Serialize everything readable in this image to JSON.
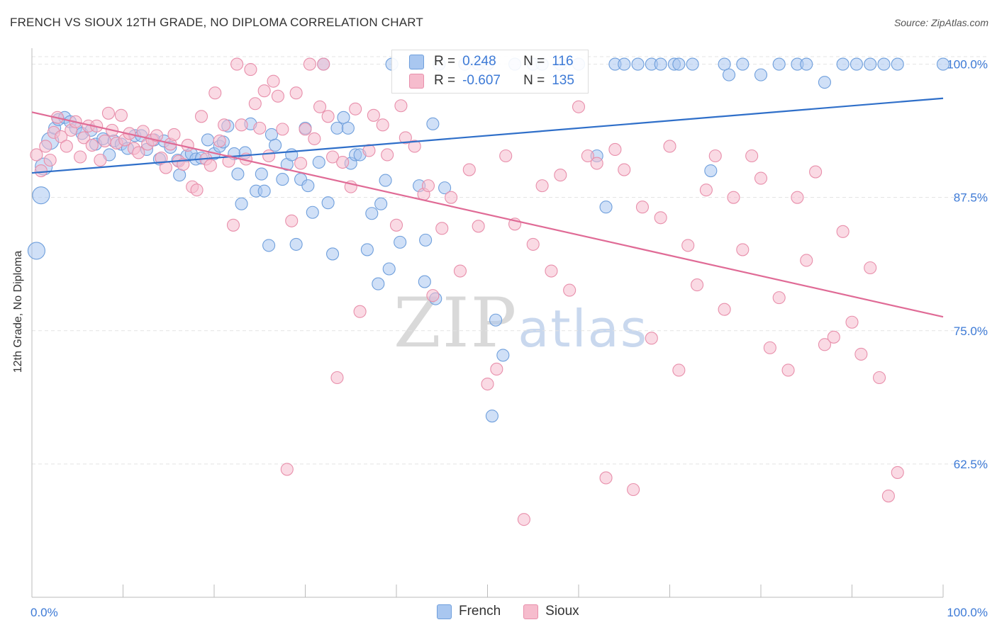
{
  "header": {
    "title": "FRENCH VS SIOUX 12TH GRADE, NO DIPLOMA CORRELATION CHART",
    "source": "Source: ZipAtlas.com"
  },
  "watermark": {
    "zip": "ZIP",
    "atlas": "atlas"
  },
  "legend": {
    "french": {
      "r_label": "R =",
      "r_value": "0.248",
      "n_label": "N =",
      "n_value": "116"
    },
    "sioux": {
      "r_label": "R =",
      "r_value": "-0.607",
      "n_label": "N =",
      "n_value": "135"
    }
  },
  "bottom_legend": {
    "french": "French",
    "sioux": "Sioux"
  },
  "colors": {
    "french_fill": "#a9c7f0",
    "french_stroke": "#6f9fdc",
    "french_line": "#2f6fc9",
    "sioux_fill": "#f6bccd",
    "sioux_stroke": "#e88fab",
    "sioux_line": "#e06b96",
    "axis_text": "#3d7ad6"
  },
  "chart_data": {
    "type": "scatter",
    "title": "FRENCH VS SIOUX 12TH GRADE, NO DIPLOMA CORRELATION CHART",
    "xlabel": "",
    "ylabel": "12th Grade, No Diploma",
    "xlim": [
      0,
      100
    ],
    "ylim": [
      50,
      101.5
    ],
    "x_tick_labels": [
      "0.0%",
      "100.0%"
    ],
    "y_ticks": [
      62.5,
      75.0,
      87.5,
      100.0
    ],
    "y_tick_labels": [
      "62.5%",
      "75.0%",
      "87.5%",
      "100.0%"
    ],
    "grid": true,
    "series": [
      {
        "name": "French",
        "r": 0.248,
        "n": 116,
        "trend": {
          "x": [
            0,
            100
          ],
          "y": [
            89.8,
            96.8
          ]
        },
        "points": [
          [
            0.5,
            82.5
          ],
          [
            1.0,
            87.7
          ],
          [
            1.3,
            90.4
          ],
          [
            2.0,
            92.8
          ],
          [
            2.5,
            94.0
          ],
          [
            2.9,
            94.8
          ],
          [
            3.6,
            95.0
          ],
          [
            4.2,
            94.6
          ],
          [
            4.8,
            94.0
          ],
          [
            5.5,
            93.5
          ],
          [
            6.5,
            93.8
          ],
          [
            7.0,
            92.5
          ],
          [
            7.8,
            93.0
          ],
          [
            8.5,
            91.5
          ],
          [
            9.0,
            92.8
          ],
          [
            9.8,
            92.5
          ],
          [
            10.5,
            92.1
          ],
          [
            11.3,
            93.3
          ],
          [
            12.0,
            93.3
          ],
          [
            12.6,
            92.0
          ],
          [
            13.4,
            92.9
          ],
          [
            14.0,
            91.1
          ],
          [
            14.5,
            92.8
          ],
          [
            15.2,
            92.2
          ],
          [
            16.0,
            91.0
          ],
          [
            16.2,
            89.6
          ],
          [
            17.0,
            91.4
          ],
          [
            17.5,
            91.6
          ],
          [
            18.0,
            91.1
          ],
          [
            18.6,
            91.2
          ],
          [
            19.3,
            92.9
          ],
          [
            20.0,
            91.6
          ],
          [
            20.6,
            92.3
          ],
          [
            21.0,
            92.7
          ],
          [
            21.5,
            94.2
          ],
          [
            22.2,
            91.6
          ],
          [
            22.6,
            89.7
          ],
          [
            23.0,
            86.9
          ],
          [
            23.4,
            91.7
          ],
          [
            24.0,
            94.4
          ],
          [
            24.6,
            88.1
          ],
          [
            25.2,
            89.7
          ],
          [
            25.5,
            88.1
          ],
          [
            26.0,
            83.0
          ],
          [
            26.3,
            93.4
          ],
          [
            26.7,
            92.4
          ],
          [
            27.5,
            89.2
          ],
          [
            28.0,
            90.6
          ],
          [
            28.5,
            91.5
          ],
          [
            29.0,
            83.1
          ],
          [
            29.5,
            89.2
          ],
          [
            30.0,
            94.0
          ],
          [
            30.3,
            88.6
          ],
          [
            30.8,
            86.1
          ],
          [
            31.5,
            90.8
          ],
          [
            32.0,
            100.0
          ],
          [
            32.5,
            87.0
          ],
          [
            33.0,
            82.2
          ],
          [
            33.5,
            94.0
          ],
          [
            34.2,
            95.0
          ],
          [
            34.7,
            94.0
          ],
          [
            35.0,
            90.7
          ],
          [
            35.5,
            91.5
          ],
          [
            36.0,
            91.5
          ],
          [
            36.8,
            82.6
          ],
          [
            37.3,
            86.0
          ],
          [
            38.0,
            79.4
          ],
          [
            38.3,
            86.9
          ],
          [
            38.8,
            89.1
          ],
          [
            39.2,
            80.8
          ],
          [
            39.5,
            100.0
          ],
          [
            40.4,
            83.3
          ],
          [
            42.0,
            100.0
          ],
          [
            42.5,
            88.6
          ],
          [
            43.1,
            79.6
          ],
          [
            43.2,
            83.5
          ],
          [
            44.0,
            94.4
          ],
          [
            44.3,
            78.0
          ],
          [
            44.7,
            100.0
          ],
          [
            45.3,
            88.4
          ],
          [
            47.5,
            100.0
          ],
          [
            49.0,
            100.0
          ],
          [
            50.0,
            100.0
          ],
          [
            50.5,
            67.0
          ],
          [
            50.9,
            76.0
          ],
          [
            51.7,
            72.7
          ],
          [
            53.0,
            100.0
          ],
          [
            55.0,
            100.0
          ],
          [
            56.0,
            100.0
          ],
          [
            58.0,
            100.0
          ],
          [
            60.0,
            100.0
          ],
          [
            62.0,
            91.4
          ],
          [
            63.0,
            86.6
          ],
          [
            64.0,
            100.0
          ],
          [
            65.0,
            100.0
          ],
          [
            66.5,
            100.0
          ],
          [
            68.0,
            100.0
          ],
          [
            69.0,
            100.0
          ],
          [
            70.5,
            100.0
          ],
          [
            71.0,
            100.0
          ],
          [
            72.5,
            100.0
          ],
          [
            74.5,
            90.0
          ],
          [
            76.0,
            100.0
          ],
          [
            76.5,
            99.0
          ],
          [
            78.0,
            100.0
          ],
          [
            80.0,
            99.0
          ],
          [
            82.0,
            100.0
          ],
          [
            84.0,
            100.0
          ],
          [
            85.0,
            100.0
          ],
          [
            87.0,
            98.3
          ],
          [
            89.0,
            100.0
          ],
          [
            90.5,
            100.0
          ],
          [
            92.0,
            100.0
          ],
          [
            93.5,
            100.0
          ],
          [
            95.0,
            100.0
          ],
          [
            100.0,
            100.0
          ]
        ]
      },
      {
        "name": "Sioux",
        "r": -0.607,
        "n": 135,
        "trend": {
          "x": [
            0,
            100
          ],
          "y": [
            95.5,
            76.3
          ]
        },
        "points": [
          [
            0.5,
            91.5
          ],
          [
            1.0,
            90.0
          ],
          [
            1.5,
            92.3
          ],
          [
            2.0,
            91.0
          ],
          [
            2.4,
            93.6
          ],
          [
            2.8,
            95.0
          ],
          [
            3.2,
            93.2
          ],
          [
            3.8,
            92.3
          ],
          [
            4.3,
            93.8
          ],
          [
            4.8,
            94.6
          ],
          [
            5.3,
            91.3
          ],
          [
            5.7,
            93.1
          ],
          [
            6.2,
            94.2
          ],
          [
            6.6,
            92.4
          ],
          [
            7.1,
            94.2
          ],
          [
            7.5,
            91.0
          ],
          [
            8.0,
            92.8
          ],
          [
            8.4,
            95.4
          ],
          [
            8.8,
            93.8
          ],
          [
            9.3,
            92.6
          ],
          [
            9.8,
            95.2
          ],
          [
            10.2,
            92.9
          ],
          [
            10.7,
            93.5
          ],
          [
            11.2,
            92.1
          ],
          [
            11.7,
            91.7
          ],
          [
            12.2,
            93.7
          ],
          [
            12.7,
            92.5
          ],
          [
            13.2,
            92.9
          ],
          [
            13.7,
            93.3
          ],
          [
            14.2,
            91.2
          ],
          [
            14.7,
            90.3
          ],
          [
            15.2,
            92.5
          ],
          [
            15.6,
            93.4
          ],
          [
            16.1,
            90.9
          ],
          [
            16.6,
            90.6
          ],
          [
            17.1,
            92.4
          ],
          [
            17.6,
            88.5
          ],
          [
            18.1,
            88.2
          ],
          [
            18.6,
            95.1
          ],
          [
            19.1,
            91.1
          ],
          [
            19.6,
            90.5
          ],
          [
            20.1,
            97.3
          ],
          [
            20.6,
            92.8
          ],
          [
            21.1,
            94.3
          ],
          [
            21.6,
            90.9
          ],
          [
            22.1,
            84.9
          ],
          [
            22.5,
            100.0
          ],
          [
            23.0,
            94.3
          ],
          [
            23.5,
            91.1
          ],
          [
            24.0,
            99.5
          ],
          [
            24.5,
            96.3
          ],
          [
            25.0,
            94.0
          ],
          [
            25.5,
            97.5
          ],
          [
            26.0,
            91.4
          ],
          [
            26.5,
            98.4
          ],
          [
            27.0,
            97.0
          ],
          [
            27.5,
            93.9
          ],
          [
            28.0,
            62.0
          ],
          [
            28.5,
            85.3
          ],
          [
            29.0,
            97.3
          ],
          [
            29.5,
            90.7
          ],
          [
            30.0,
            93.9
          ],
          [
            30.5,
            100.0
          ],
          [
            31.0,
            93.0
          ],
          [
            31.6,
            96.0
          ],
          [
            32.0,
            100.0
          ],
          [
            32.5,
            95.1
          ],
          [
            33.0,
            91.3
          ],
          [
            33.5,
            70.6
          ],
          [
            34.1,
            90.8
          ],
          [
            35.0,
            88.5
          ],
          [
            35.5,
            95.8
          ],
          [
            36.0,
            76.8
          ],
          [
            37.0,
            91.9
          ],
          [
            37.5,
            95.2
          ],
          [
            38.5,
            94.3
          ],
          [
            39.0,
            91.5
          ],
          [
            40.0,
            84.9
          ],
          [
            40.5,
            96.1
          ],
          [
            41.0,
            93.1
          ],
          [
            42.0,
            92.3
          ],
          [
            43.0,
            87.8
          ],
          [
            43.5,
            88.6
          ],
          [
            44.0,
            78.3
          ],
          [
            45.0,
            84.6
          ],
          [
            46.0,
            87.5
          ],
          [
            47.0,
            80.6
          ],
          [
            48.0,
            90.1
          ],
          [
            49.0,
            84.8
          ],
          [
            50.0,
            70.0
          ],
          [
            51.0,
            71.4
          ],
          [
            52.0,
            91.4
          ],
          [
            53.0,
            85.0
          ],
          [
            54.0,
            57.3
          ],
          [
            55.0,
            83.1
          ],
          [
            56.0,
            88.6
          ],
          [
            57.0,
            80.6
          ],
          [
            58.0,
            89.6
          ],
          [
            59.0,
            78.8
          ],
          [
            60.0,
            96.0
          ],
          [
            61.0,
            91.4
          ],
          [
            62.0,
            90.7
          ],
          [
            63.0,
            61.2
          ],
          [
            64.0,
            92.0
          ],
          [
            65.0,
            90.1
          ],
          [
            66.0,
            60.1
          ],
          [
            67.0,
            86.6
          ],
          [
            68.0,
            74.3
          ],
          [
            69.0,
            85.6
          ],
          [
            70.0,
            92.3
          ],
          [
            71.0,
            71.3
          ],
          [
            72.0,
            83.0
          ],
          [
            73.0,
            79.3
          ],
          [
            74.0,
            88.2
          ],
          [
            75.0,
            91.4
          ],
          [
            76.0,
            77.0
          ],
          [
            77.0,
            87.5
          ],
          [
            78.0,
            82.6
          ],
          [
            79.0,
            91.4
          ],
          [
            80.0,
            89.3
          ],
          [
            81.0,
            73.4
          ],
          [
            82.0,
            78.1
          ],
          [
            83.0,
            71.3
          ],
          [
            84.0,
            87.5
          ],
          [
            85.0,
            81.6
          ],
          [
            86.0,
            89.9
          ],
          [
            87.0,
            73.7
          ],
          [
            88.0,
            74.4
          ],
          [
            89.0,
            84.3
          ],
          [
            90.0,
            75.8
          ],
          [
            91.0,
            72.8
          ],
          [
            92.0,
            80.9
          ],
          [
            93.0,
            70.6
          ],
          [
            94.0,
            59.5
          ],
          [
            95.0,
            61.7
          ]
        ]
      }
    ]
  }
}
